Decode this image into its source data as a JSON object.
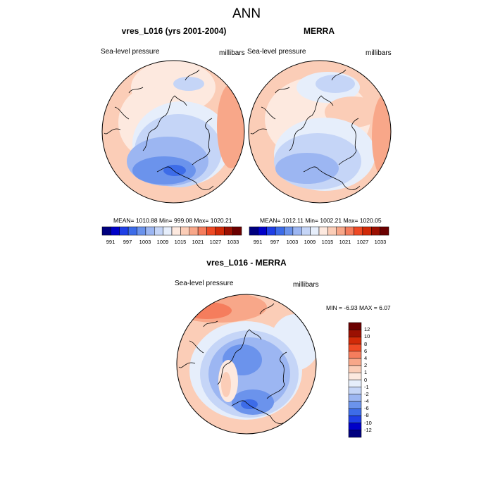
{
  "main_title": "ANN",
  "panels": [
    {
      "title": "vres_L016 (yrs 2001-2004)",
      "variable": "Sea-level pressure",
      "units": "millibars",
      "stats": "MEAN= 1010.88  Min= 999.08  Max= 1020.21"
    },
    {
      "title": "MERRA",
      "variable": "Sea-level pressure",
      "units": "millibars",
      "stats": "MEAN= 1012.11  Min= 1002.21  Max= 1020.05"
    },
    {
      "title": "vres_L016 - MERRA",
      "variable": "Sea-level pressure",
      "units": "millibars",
      "stats": "MIN =  -6.93 MAX =   6.07"
    }
  ],
  "colors": {
    "abs_scale": [
      "#00007f",
      "#0000c8",
      "#1f3fe6",
      "#3d6ce8",
      "#6b93ec",
      "#9cb6f2",
      "#c5d5f7",
      "#e6eefb",
      "#fde9df",
      "#fbcdb7",
      "#f8a789",
      "#f57d5d",
      "#ee4a25",
      "#d12a08",
      "#9b1002",
      "#6b0000"
    ],
    "diff_scale": [
      "#00007f",
      "#0000c8",
      "#1f3fe6",
      "#3d6ce8",
      "#6b93ec",
      "#9cb6f2",
      "#c5d5f7",
      "#e6eefb",
      "#fde9df",
      "#fbcdb7",
      "#f8a789",
      "#f57d5d",
      "#ee4a25",
      "#d12a08",
      "#9b1002",
      "#6b0000"
    ]
  },
  "chart_data": [
    {
      "type": "heatmap",
      "title": "vres_L016 (yrs 2001-2004)",
      "subtitle": "Sea-level pressure",
      "units": "millibars",
      "projection": "north polar stereographic",
      "colorbar_ticks": [
        "991",
        "997",
        "1003",
        "1009",
        "1015",
        "1021",
        "1027",
        "1033"
      ],
      "mean": 1010.88,
      "min": 999.08,
      "max": 1020.21
    },
    {
      "type": "heatmap",
      "title": "MERRA",
      "subtitle": "Sea-level pressure",
      "units": "millibars",
      "projection": "north polar stereographic",
      "colorbar_ticks": [
        "991",
        "997",
        "1003",
        "1009",
        "1015",
        "1021",
        "1027",
        "1033"
      ],
      "mean": 1012.11,
      "min": 1002.21,
      "max": 1020.05
    },
    {
      "type": "heatmap",
      "title": "vres_L016 - MERRA",
      "subtitle": "Sea-level pressure",
      "units": "millibars",
      "projection": "north polar stereographic",
      "colorbar_ticks": [
        "12",
        "10",
        "8",
        "6",
        "4",
        "2",
        "1",
        "0",
        "-1",
        "-2",
        "-4",
        "-6",
        "-8",
        "-10",
        "-12"
      ],
      "min": -6.93,
      "max": 6.07
    }
  ]
}
